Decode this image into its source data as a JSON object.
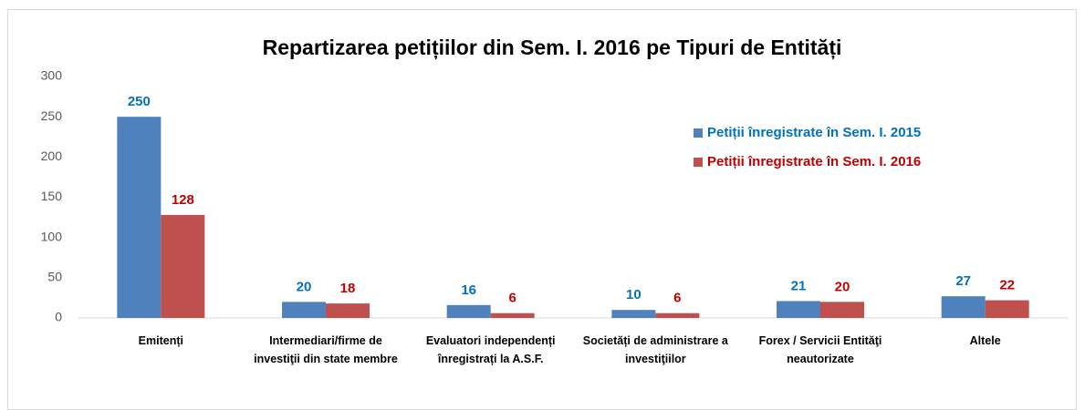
{
  "chart_data": {
    "type": "bar",
    "title": "Repartizarea petițiilor din Sem. I. 2016 pe Tipuri de Entități",
    "categories": [
      "Emitenți",
      "Intermediari/firme de investiţii din state membre",
      "Evaluatori independenți înregistrați la A.S.F.",
      "Societăți de administrare a investiţiilor",
      "Forex / Servicii Entităţi neautorizate",
      "Altele"
    ],
    "series": [
      {
        "name": "Petiții înregistrate în Sem. I. 2015",
        "color": "#4f81bd",
        "label_color": "#0070c0",
        "values": [
          250,
          20,
          16,
          10,
          21,
          27
        ]
      },
      {
        "name": "Petiții înregistrate în Sem. I. 2016",
        "color": "#c0504d",
        "label_color": "#c00000",
        "values": [
          128,
          18,
          6,
          6,
          20,
          22
        ]
      }
    ],
    "ylim": [
      0,
      300
    ],
    "yticks": [
      0,
      50,
      100,
      150,
      200,
      250,
      300
    ],
    "grid": false,
    "legend": "upper right"
  }
}
